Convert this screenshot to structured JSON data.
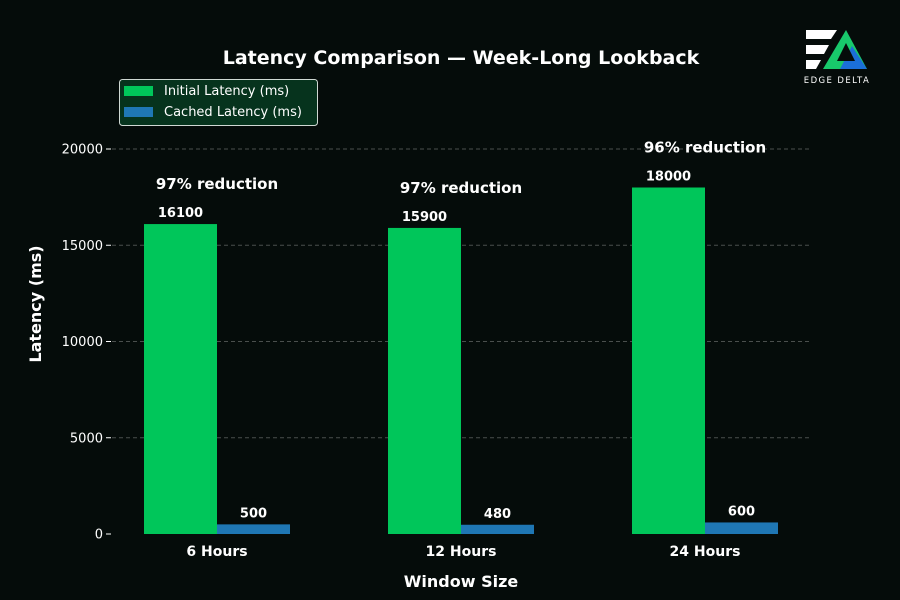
{
  "chart_data": {
    "type": "bar",
    "title": "Latency Comparison — Week-Long Lookback",
    "xlabel": "Window Size",
    "ylabel": "Latency (ms)",
    "categories": [
      "6 Hours",
      "12 Hours",
      "24 Hours"
    ],
    "series": [
      {
        "name": "Initial Latency (ms)",
        "values": [
          16100,
          15900,
          18000
        ],
        "color": "#00c65a"
      },
      {
        "name": "Cached Latency (ms)",
        "values": [
          500,
          480,
          600
        ],
        "color": "#1f77b4"
      }
    ],
    "yticks": [
      "0",
      "5000",
      "10000",
      "15000",
      "20000"
    ],
    "ylim": [
      0,
      20000
    ],
    "grid": true,
    "legend_position": "top-left",
    "annotations": [
      "97% reduction",
      "97% reduction",
      "96% reduction"
    ],
    "data_labels": [
      [
        "16100",
        "15900",
        "18000"
      ],
      [
        "500",
        "480",
        "600"
      ]
    ]
  },
  "logo": {
    "text": "EDGE DELTA",
    "colors": [
      "#ffffff",
      "#18c96b",
      "#1b6fd8"
    ]
  },
  "colors": {
    "background": "#050c0a",
    "text": "#ffffff",
    "grid": "#4a4f4d",
    "legend_background": "#06331d",
    "legend_border": "#cfd8d3"
  }
}
